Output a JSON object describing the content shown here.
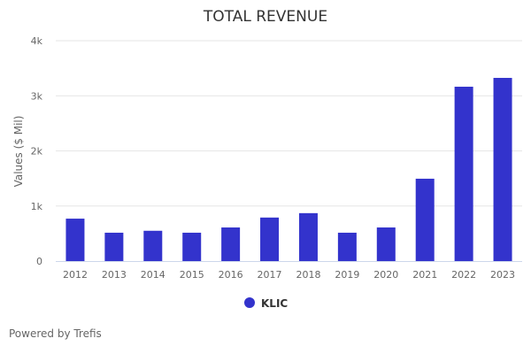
{
  "chart_data": {
    "type": "bar",
    "title": "TOTAL REVENUE",
    "xlabel": "",
    "ylabel": "Values ($ Mil)",
    "ylim": [
      0,
      4000
    ],
    "yticks": [
      0,
      1000,
      2000,
      3000,
      4000
    ],
    "ytick_labels": [
      "0",
      "1k",
      "2k",
      "3k",
      "4k"
    ],
    "grid": true,
    "categories": [
      "2012",
      "2013",
      "2014",
      "2015",
      "2016",
      "2017",
      "2018",
      "2019",
      "2020",
      "2021",
      "2022",
      "2023"
    ],
    "series": [
      {
        "name": "KLIC",
        "color": "#3333cc",
        "values": [
          770,
          515,
          550,
          515,
          610,
          790,
          870,
          515,
          610,
          1495,
          3165,
          3325
        ]
      }
    ],
    "legend": "bottom-center"
  },
  "credit": "Powered by Trefis"
}
